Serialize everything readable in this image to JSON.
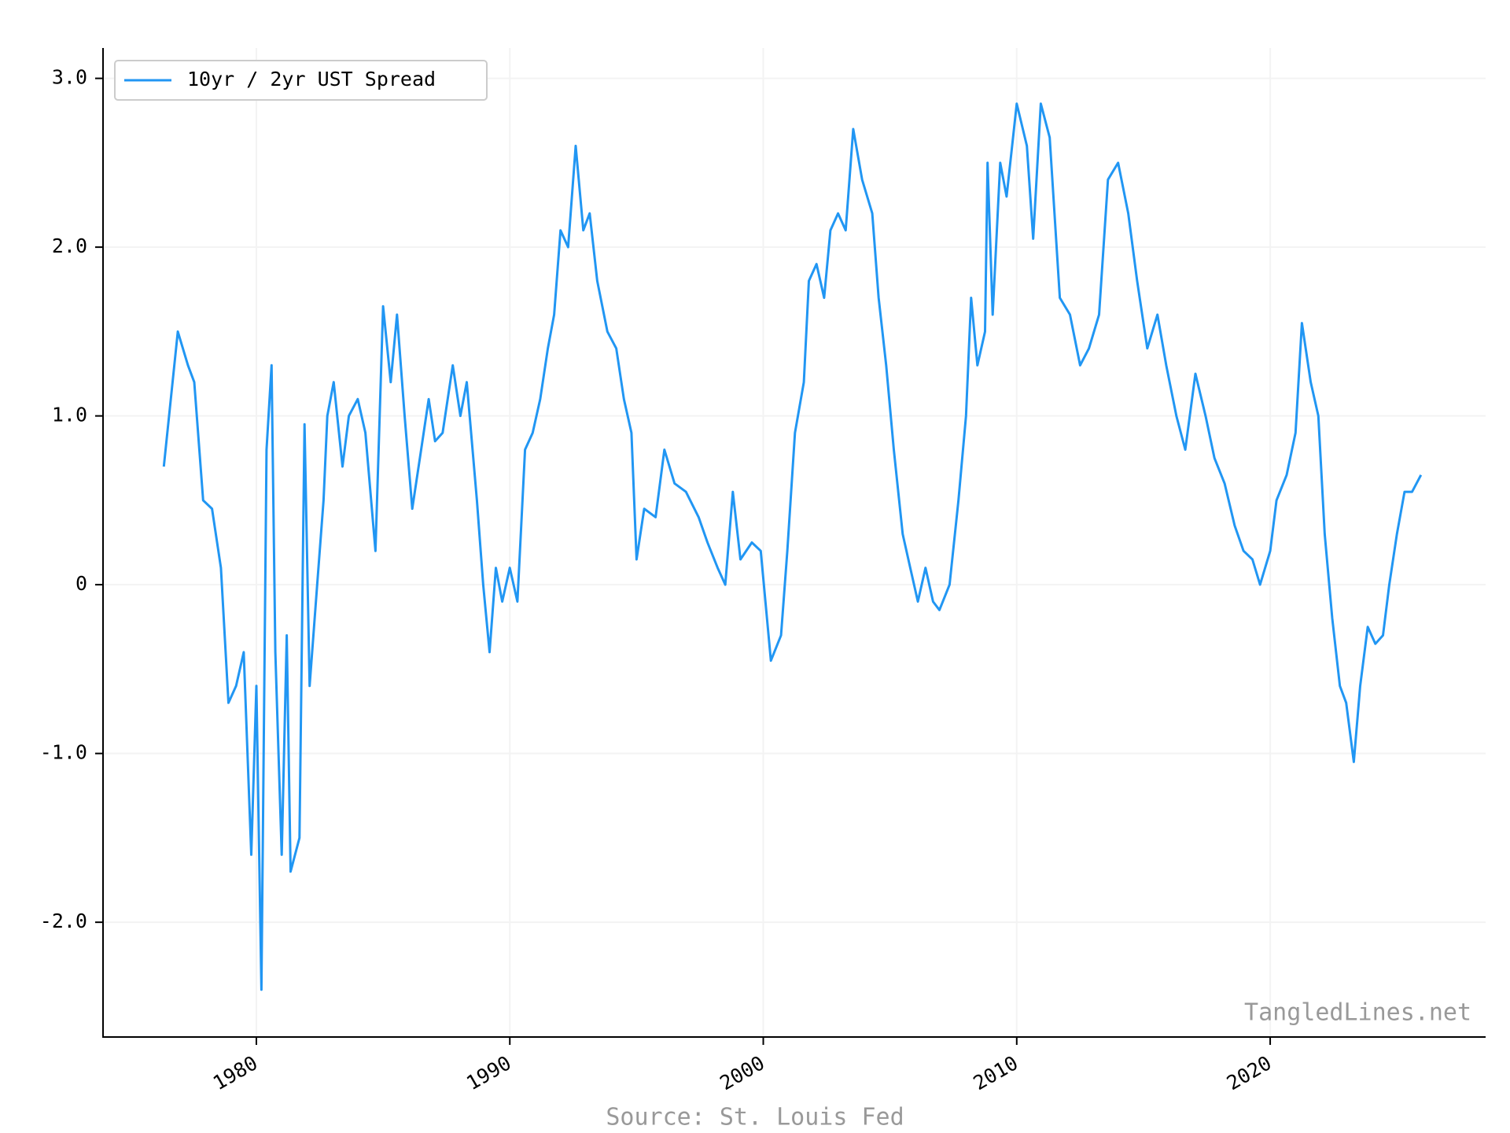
{
  "chart_data": {
    "type": "line",
    "legend_label_note_free": null,
    "x": [
      1976.35,
      1976.9,
      1977.3,
      1977.55,
      1977.9,
      1978.25,
      1978.6,
      1978.9,
      1979.2,
      1979.5,
      1979.8,
      1980.0,
      1980.2,
      1980.4,
      1980.6,
      1980.75,
      1981.0,
      1981.2,
      1981.35,
      1981.7,
      1981.9,
      1982.1,
      1982.4,
      1982.65,
      1982.8,
      1983.05,
      1983.4,
      1983.65,
      1984.0,
      1984.3,
      1984.7,
      1985.0,
      1985.3,
      1985.55,
      1985.85,
      1986.15,
      1986.5,
      1986.8,
      1987.05,
      1987.35,
      1987.75,
      1988.05,
      1988.3,
      1988.7,
      1988.95,
      1989.2,
      1989.45,
      1989.7,
      1990.0,
      1990.3,
      1990.6,
      1990.9,
      1991.2,
      1991.5,
      1991.75,
      1992.0,
      1992.3,
      1992.6,
      1992.9,
      1993.15,
      1993.45,
      1993.85,
      1994.2,
      1994.5,
      1994.8,
      1995.0,
      1995.3,
      1995.75,
      1996.1,
      1996.5,
      1996.95,
      1997.45,
      1997.8,
      1998.2,
      1998.5,
      1998.8,
      1999.1,
      1999.55,
      1999.9,
      2000.3,
      2000.7,
      2000.95,
      2001.25,
      2001.6,
      2001.8,
      2002.1,
      2002.4,
      2002.65,
      2002.95,
      2003.25,
      2003.55,
      2003.9,
      2004.3,
      2004.55,
      2004.85,
      2005.15,
      2005.5,
      2005.8,
      2006.1,
      2006.4,
      2006.7,
      2006.95,
      2007.35,
      2007.7,
      2008.0,
      2008.2,
      2008.45,
      2008.75,
      2008.85,
      2009.05,
      2009.35,
      2009.6,
      2010.0,
      2010.4,
      2010.65,
      2010.95,
      2011.3,
      2011.7,
      2012.1,
      2012.5,
      2012.85,
      2013.25,
      2013.6,
      2014.0,
      2014.4,
      2014.75,
      2015.15,
      2015.55,
      2015.9,
      2016.3,
      2016.65,
      2017.05,
      2017.45,
      2017.8,
      2018.2,
      2018.6,
      2018.95,
      2019.3,
      2019.6,
      2020.0,
      2020.25,
      2020.65,
      2021.0,
      2021.25,
      2021.6,
      2021.9,
      2022.15,
      2022.45,
      2022.75,
      2023.0,
      2023.3,
      2023.55,
      2023.85,
      2024.15,
      2024.45,
      2024.7,
      2025.0,
      2025.3,
      2025.6,
      2025.95
    ],
    "series": [
      {
        "name": "10yr / 2yr UST Spread",
        "color": "#2196f3",
        "values": [
          0.7,
          1.5,
          1.3,
          1.2,
          0.5,
          0.45,
          0.1,
          -0.7,
          -0.6,
          -0.4,
          -1.6,
          -0.6,
          -2.4,
          0.8,
          1.3,
          -0.4,
          -1.6,
          -0.3,
          -1.7,
          -1.5,
          0.95,
          -0.6,
          0.0,
          0.5,
          1.0,
          1.2,
          0.7,
          1.0,
          1.1,
          0.9,
          0.2,
          1.65,
          1.2,
          1.6,
          1.0,
          0.45,
          0.8,
          1.1,
          0.85,
          0.9,
          1.3,
          1.0,
          1.2,
          0.5,
          0.0,
          -0.4,
          0.1,
          -0.1,
          0.1,
          -0.1,
          0.8,
          0.9,
          1.1,
          1.4,
          1.6,
          2.1,
          2.0,
          2.6,
          2.1,
          2.2,
          1.8,
          1.5,
          1.4,
          1.1,
          0.9,
          0.15,
          0.45,
          0.4,
          0.8,
          0.6,
          0.55,
          0.4,
          0.25,
          0.1,
          0.0,
          0.55,
          0.15,
          0.25,
          0.2,
          -0.45,
          -0.3,
          0.2,
          0.9,
          1.2,
          1.8,
          1.9,
          1.7,
          2.1,
          2.2,
          2.1,
          2.7,
          2.4,
          2.2,
          1.7,
          1.3,
          0.8,
          0.3,
          0.1,
          -0.1,
          0.1,
          -0.1,
          -0.15,
          0.0,
          0.5,
          1.0,
          1.7,
          1.3,
          1.5,
          2.5,
          1.6,
          2.5,
          2.3,
          2.85,
          2.6,
          2.05,
          2.85,
          2.65,
          1.7,
          1.6,
          1.3,
          1.4,
          1.6,
          2.4,
          2.5,
          2.2,
          1.8,
          1.4,
          1.6,
          1.3,
          1.0,
          0.8,
          1.25,
          1.0,
          0.75,
          0.6,
          0.35,
          0.2,
          0.15,
          0.0,
          0.2,
          0.5,
          0.65,
          0.9,
          1.55,
          1.2,
          1.0,
          0.3,
          -0.2,
          -0.6,
          -0.7,
          -1.05,
          -0.6,
          -0.25,
          -0.35,
          -0.3,
          0.0,
          0.3,
          0.55,
          0.55,
          0.65
        ]
      }
    ],
    "xlim": [
      1973.95,
      2028.5
    ],
    "xticks": [
      1980,
      1990,
      2000,
      2010,
      2020
    ],
    "ylim": [
      -2.68,
      3.18
    ],
    "yticks": [
      {
        "value": -2,
        "label": "-2.0"
      },
      {
        "value": -1,
        "label": "-1.0"
      },
      0,
      {
        "value": 1,
        "label": "1.0"
      },
      {
        "value": 2,
        "label": "2.0"
      },
      {
        "value": 3,
        "label": "3.0"
      }
    ],
    "grid": true,
    "legend": "upper left",
    "watermark": "TangledLines.net",
    "source": "Source: St. Louis Fed"
  }
}
